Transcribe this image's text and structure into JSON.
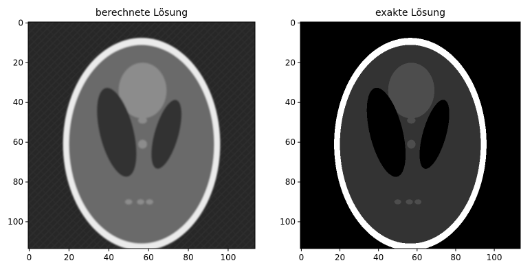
{
  "chart_data": [
    {
      "type": "heatmap",
      "title": "berechnete Lösung",
      "image_size": [
        114,
        114
      ],
      "colormap": "gray",
      "xlim": [
        -0.5,
        113.5
      ],
      "ylim": [
        113.5,
        -0.5
      ],
      "xticks": [
        0,
        20,
        40,
        60,
        80,
        100
      ],
      "yticks": [
        0,
        20,
        40,
        60,
        80,
        100
      ],
      "grid": false,
      "content": "reconstructed Shepp-Logan phantom with streak artifacts",
      "intensity": {
        "background": 0.16,
        "skull": 0.92,
        "brain": 0.42,
        "ventricles": 0.2,
        "center_blob": 0.55
      }
    },
    {
      "type": "heatmap",
      "title": "exakte Lösung",
      "image_size": [
        114,
        114
      ],
      "colormap": "gray",
      "xlim": [
        -0.5,
        113.5
      ],
      "ylim": [
        113.5,
        -0.5
      ],
      "xticks": [
        0,
        20,
        40,
        60,
        80,
        100
      ],
      "yticks": [
        0,
        20,
        40,
        60,
        80,
        100
      ],
      "grid": false,
      "content": "exact Shepp-Logan phantom",
      "intensity": {
        "background": 0.0,
        "skull": 1.0,
        "brain": 0.2,
        "ventricles": 0.0,
        "center_blob": 0.3
      }
    }
  ]
}
